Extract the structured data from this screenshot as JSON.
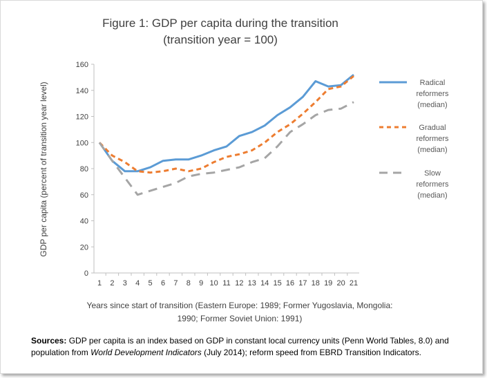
{
  "chart_data": {
    "type": "line",
    "title": "Figure 1: GDP per capita during the transition",
    "subtitle": "(transition year = 100)",
    "ylabel": "GDP per capita (percent of transition year level)",
    "xlabel_line1": "Years since start of transition (Eastern Europe: 1989; Former Yugoslavia, Mongolia:",
    "xlabel_line2": "1990; Former Soviet Union: 1991)",
    "ylim": [
      0,
      160
    ],
    "yticks": [
      0,
      20,
      40,
      60,
      80,
      100,
      120,
      140,
      160
    ],
    "x": [
      1,
      2,
      3,
      4,
      5,
      6,
      7,
      8,
      9,
      10,
      11,
      12,
      13,
      14,
      15,
      16,
      17,
      18,
      19,
      20,
      21
    ],
    "series": [
      {
        "name": "Radical reformers (median)",
        "legend_lines": [
          "Radical",
          "reformers",
          "(median)"
        ],
        "color": "#5b9bd5",
        "dash": "solid",
        "values": [
          100,
          86,
          78,
          78,
          81,
          86,
          87,
          87,
          90,
          94,
          97,
          105,
          108,
          113,
          121,
          127,
          135,
          147,
          143,
          144,
          152
        ]
      },
      {
        "name": "Gradual reformers (median)",
        "legend_lines": [
          "Gradual",
          "reformers",
          "(median)"
        ],
        "color": "#ed7d31",
        "dash": "dash",
        "values": [
          100,
          90,
          85,
          78,
          77,
          78,
          80,
          78,
          80,
          85,
          89,
          91,
          94,
          100,
          108,
          114,
          122,
          131,
          141,
          143,
          151
        ]
      },
      {
        "name": "Slow reformers (median)",
        "legend_lines": [
          "Slow",
          "reformers",
          "(median)"
        ],
        "color": "#a5a5a5",
        "dash": "longdash",
        "values": [
          100,
          86,
          73,
          60,
          63,
          66,
          69,
          74,
          76,
          77,
          79,
          81,
          85,
          88,
          97,
          108,
          114,
          121,
          125,
          126,
          131
        ]
      }
    ],
    "legend_position": "right"
  },
  "sources": {
    "label": "Sources:",
    "text_1": " GDP per capita is an index based on GDP in constant local currency units (Penn World Tables, 8.0) and population from ",
    "italic": "World Development Indicators",
    "text_2": " (July 2014); reform speed from EBRD Transition Indicators."
  }
}
